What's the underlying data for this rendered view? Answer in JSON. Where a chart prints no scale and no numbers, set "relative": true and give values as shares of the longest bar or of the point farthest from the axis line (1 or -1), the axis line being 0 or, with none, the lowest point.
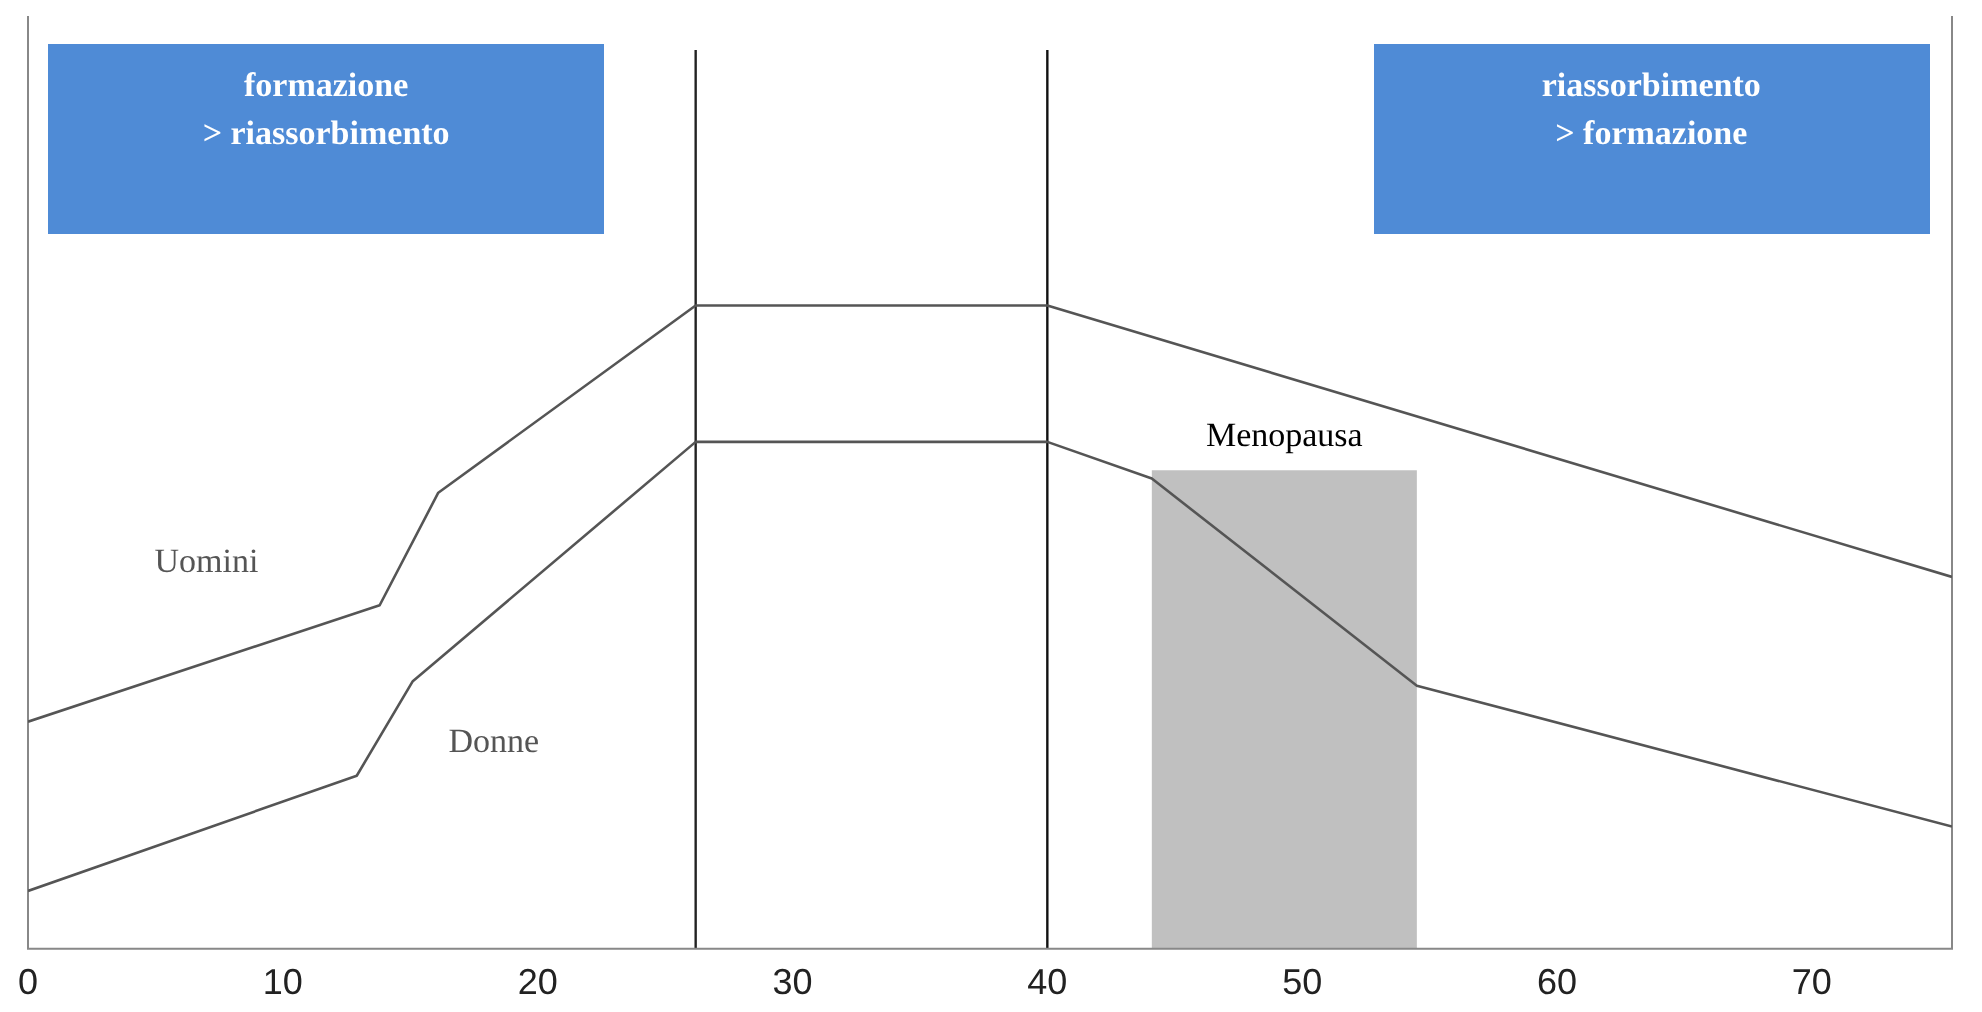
{
  "chart_data": {
    "type": "line",
    "relative": true,
    "xlim": [
      0,
      75.5
    ],
    "xticks": [
      0,
      10,
      20,
      30,
      40,
      50,
      60,
      70
    ],
    "grid": false,
    "legend": false,
    "marker": "none",
    "line_style": "solid",
    "series": [
      {
        "name": "Uomini",
        "color": "#555555",
        "x": [
          0,
          13.8,
          16.1,
          26.2,
          40,
          75.5
        ],
        "values": [
          0.353,
          0.534,
          0.709,
          1,
          1,
          0.578
        ]
      },
      {
        "name": "Donne",
        "color": "#555555",
        "x": [
          0,
          12.9,
          15.1,
          26.2,
          40,
          44.1,
          54.5,
          75.5
        ],
        "values": [
          0.09,
          0.269,
          0.416,
          0.788,
          0.788,
          0.731,
          0.409,
          0.19
        ]
      }
    ],
    "ref_lines": [
      {
        "axis": "x",
        "value": 26.2,
        "color": "#222222"
      },
      {
        "axis": "x",
        "value": 40,
        "color": "#111111"
      }
    ],
    "bands": [
      {
        "axis": "x",
        "from": 44.1,
        "to": 54.5,
        "label": "Menopausa",
        "color": "#c0c0c0"
      }
    ],
    "annotations": [
      "formazione\n> riassorbimento",
      "riassorbimento\n> formazione"
    ]
  }
}
